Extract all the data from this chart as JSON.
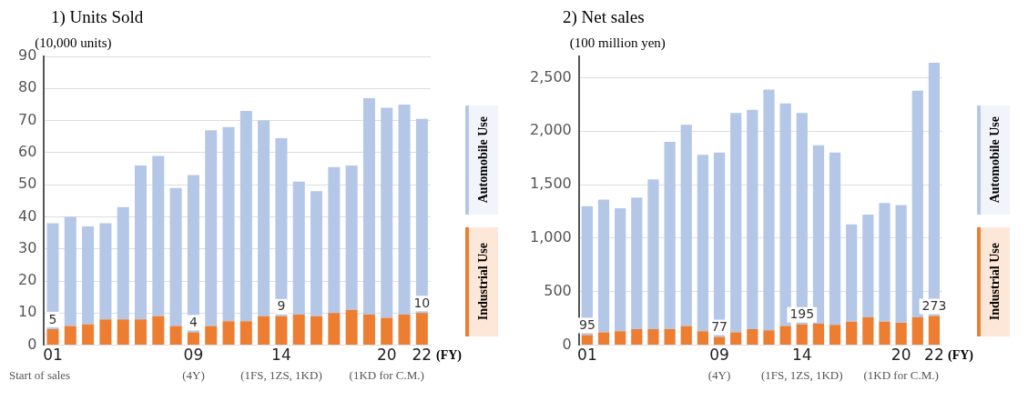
{
  "chart_data": [
    {
      "type": "bar",
      "title": "1) Units Sold",
      "ylabel": "(10,000 units)",
      "xlabel": "(FY)",
      "stacked": true,
      "legend": "right",
      "grid": "y",
      "categories": [
        "01",
        null,
        null,
        null,
        null,
        null,
        null,
        null,
        "09",
        null,
        null,
        null,
        null,
        "14",
        null,
        null,
        null,
        null,
        null,
        "20",
        null,
        "22"
      ],
      "ylim": [
        0,
        90
      ],
      "yticks": [
        0,
        10,
        20,
        30,
        40,
        50,
        60,
        70,
        80,
        90
      ],
      "series": [
        {
          "name": "Industrial Use",
          "color": "#ed7d31",
          "values": [
            5,
            6,
            6.5,
            8,
            8,
            8,
            9,
            6,
            4,
            6,
            7.5,
            7.5,
            9,
            9,
            9.5,
            9,
            10,
            11,
            9.5,
            8.5,
            9.5,
            10
          ],
          "value_labels": [
            "5",
            null,
            null,
            null,
            null,
            null,
            null,
            null,
            "4",
            null,
            null,
            null,
            null,
            "9",
            null,
            null,
            null,
            null,
            null,
            null,
            null,
            "10"
          ]
        },
        {
          "name": "Automobile Use",
          "color": "#b4c7e7",
          "values": [
            33,
            34,
            30.5,
            30,
            35,
            48,
            50,
            43,
            49,
            61,
            60.5,
            65.5,
            61,
            55.5,
            41.5,
            39,
            45.5,
            45,
            67.5,
            65.5,
            65.5,
            60.5
          ]
        }
      ],
      "annotations": [
        "Start of sales",
        "(4Y)",
        "(1FS, 1ZS, 1KD)",
        "(1KD for C.M.)"
      ]
    },
    {
      "type": "bar",
      "title": "2) Net sales",
      "ylabel": "(100 million yen)",
      "xlabel": "(FY)",
      "stacked": true,
      "legend": "right",
      "grid": "y",
      "categories": [
        "01",
        null,
        null,
        null,
        null,
        null,
        null,
        null,
        "09",
        null,
        null,
        null,
        null,
        "14",
        null,
        null,
        null,
        null,
        null,
        "20",
        null,
        "22"
      ],
      "ylim": [
        0,
        2700
      ],
      "yticks": [
        0,
        500,
        {
          "value": 1000,
          "label": "1,000"
        },
        {
          "value": 1500,
          "label": "1,500"
        },
        {
          "value": 2000,
          "label": "2,000"
        },
        {
          "value": 2500,
          "label": "2,500"
        }
      ],
      "series": [
        {
          "name": "Industrial Use",
          "color": "#ed7d31",
          "values": [
            95,
            120,
            130,
            150,
            150,
            150,
            180,
            130,
            77,
            120,
            150,
            140,
            180,
            195,
            200,
            190,
            220,
            260,
            220,
            210,
            260,
            273
          ],
          "value_labels": [
            "95",
            null,
            null,
            null,
            null,
            null,
            null,
            null,
            "77",
            null,
            null,
            null,
            null,
            "195",
            null,
            null,
            null,
            null,
            null,
            null,
            null,
            "273"
          ]
        },
        {
          "name": "Automobile Use",
          "color": "#b4c7e7",
          "values": [
            1205,
            1240,
            1150,
            1230,
            1400,
            1750,
            1880,
            1650,
            1723,
            2050,
            2050,
            2250,
            2080,
            1975,
            1670,
            1610,
            910,
            960,
            1110,
            1100,
            2120,
            2367
          ]
        }
      ],
      "annotations": [
        "(4Y)",
        "(1FS, 1ZS, 1KD)",
        "(1KD for C.M.)"
      ]
    }
  ]
}
